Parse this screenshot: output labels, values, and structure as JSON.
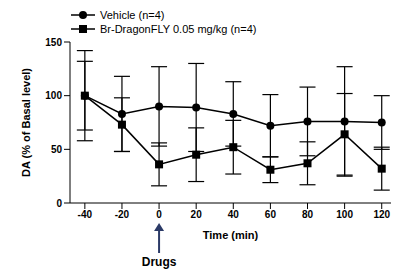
{
  "chart_data": {
    "type": "line",
    "x_label": "Time (min)",
    "y_label": "DA (% of Basal level)",
    "x": [
      -40,
      -20,
      0,
      20,
      40,
      60,
      80,
      100,
      120
    ],
    "xlim": [
      -48,
      125
    ],
    "xticks": [
      -40,
      -20,
      0,
      20,
      40,
      60,
      80,
      100,
      120
    ],
    "ylim": [
      0,
      150
    ],
    "yticks": [
      0,
      50,
      100,
      150
    ],
    "legend": "top-left",
    "series": [
      {
        "name": "Vehicle (n=4)",
        "color": "#000000",
        "marker": "circle",
        "values": [
          100,
          83,
          90,
          89,
          83,
          72,
          76,
          76,
          75
        ],
        "errors": [
          42,
          35,
          37,
          41,
          30,
          29,
          32,
          51,
          25
        ]
      },
      {
        "name": "Br-DragonFLY 0.05 mg/kg (n=4)",
        "color": "#000000",
        "marker": "square",
        "values": [
          100,
          73,
          36,
          45,
          52,
          31,
          37,
          64,
          32
        ],
        "errors": [
          32,
          25,
          20,
          25,
          25,
          12,
          20,
          38,
          20
        ]
      }
    ],
    "annotations": [
      {
        "text": "Drugs",
        "x": 0
      }
    ]
  }
}
